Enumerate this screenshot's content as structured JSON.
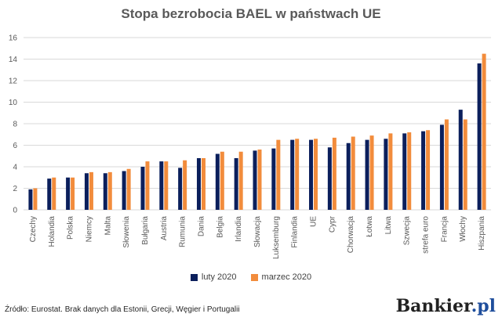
{
  "chart_data": {
    "type": "bar",
    "title": "Stopa bezrobocia BAEL w państwach UE",
    "ylim": [
      0,
      16
    ],
    "yticks": [
      0,
      2,
      4,
      6,
      8,
      10,
      12,
      14,
      16
    ],
    "grid": true,
    "legend_position": "bottom",
    "categories": [
      "Czechy",
      "Holandia",
      "Polska",
      "Niemcy",
      "Malta",
      "Słowenia",
      "Bułgaria",
      "Austria",
      "Rumunia",
      "Dania",
      "Belgia",
      "Irlandia",
      "Słowacja",
      "Luksemburg",
      "Finlandia",
      "UE",
      "Cypr",
      "Chorwacja",
      "Łotwa",
      "Litwa",
      "Szwecja",
      "strefa euro",
      "Francja",
      "Włochy",
      "Hiszpania"
    ],
    "series": [
      {
        "name": "luty 2020",
        "color": "#0b1f5c",
        "values": [
          1.9,
          2.9,
          3.0,
          3.4,
          3.4,
          3.6,
          4.0,
          4.5,
          3.9,
          4.8,
          5.2,
          4.8,
          5.5,
          5.7,
          6.5,
          6.5,
          5.8,
          6.2,
          6.5,
          6.6,
          7.1,
          7.3,
          7.9,
          9.3,
          13.6
        ]
      },
      {
        "name": "marzec 2020",
        "color": "#f28c3c",
        "values": [
          2.0,
          3.0,
          3.0,
          3.5,
          3.5,
          3.8,
          4.5,
          4.5,
          4.6,
          4.8,
          5.4,
          5.4,
          5.6,
          6.5,
          6.6,
          6.6,
          6.7,
          6.8,
          6.9,
          7.1,
          7.2,
          7.4,
          8.4,
          8.4,
          14.5
        ]
      }
    ]
  },
  "source_text": "Źródło: Eurostat. Brak danych dla Estonii, Grecji, Węgier i Portugalii",
  "brand": {
    "name": "Bankier",
    "suffix": ".pl"
  }
}
